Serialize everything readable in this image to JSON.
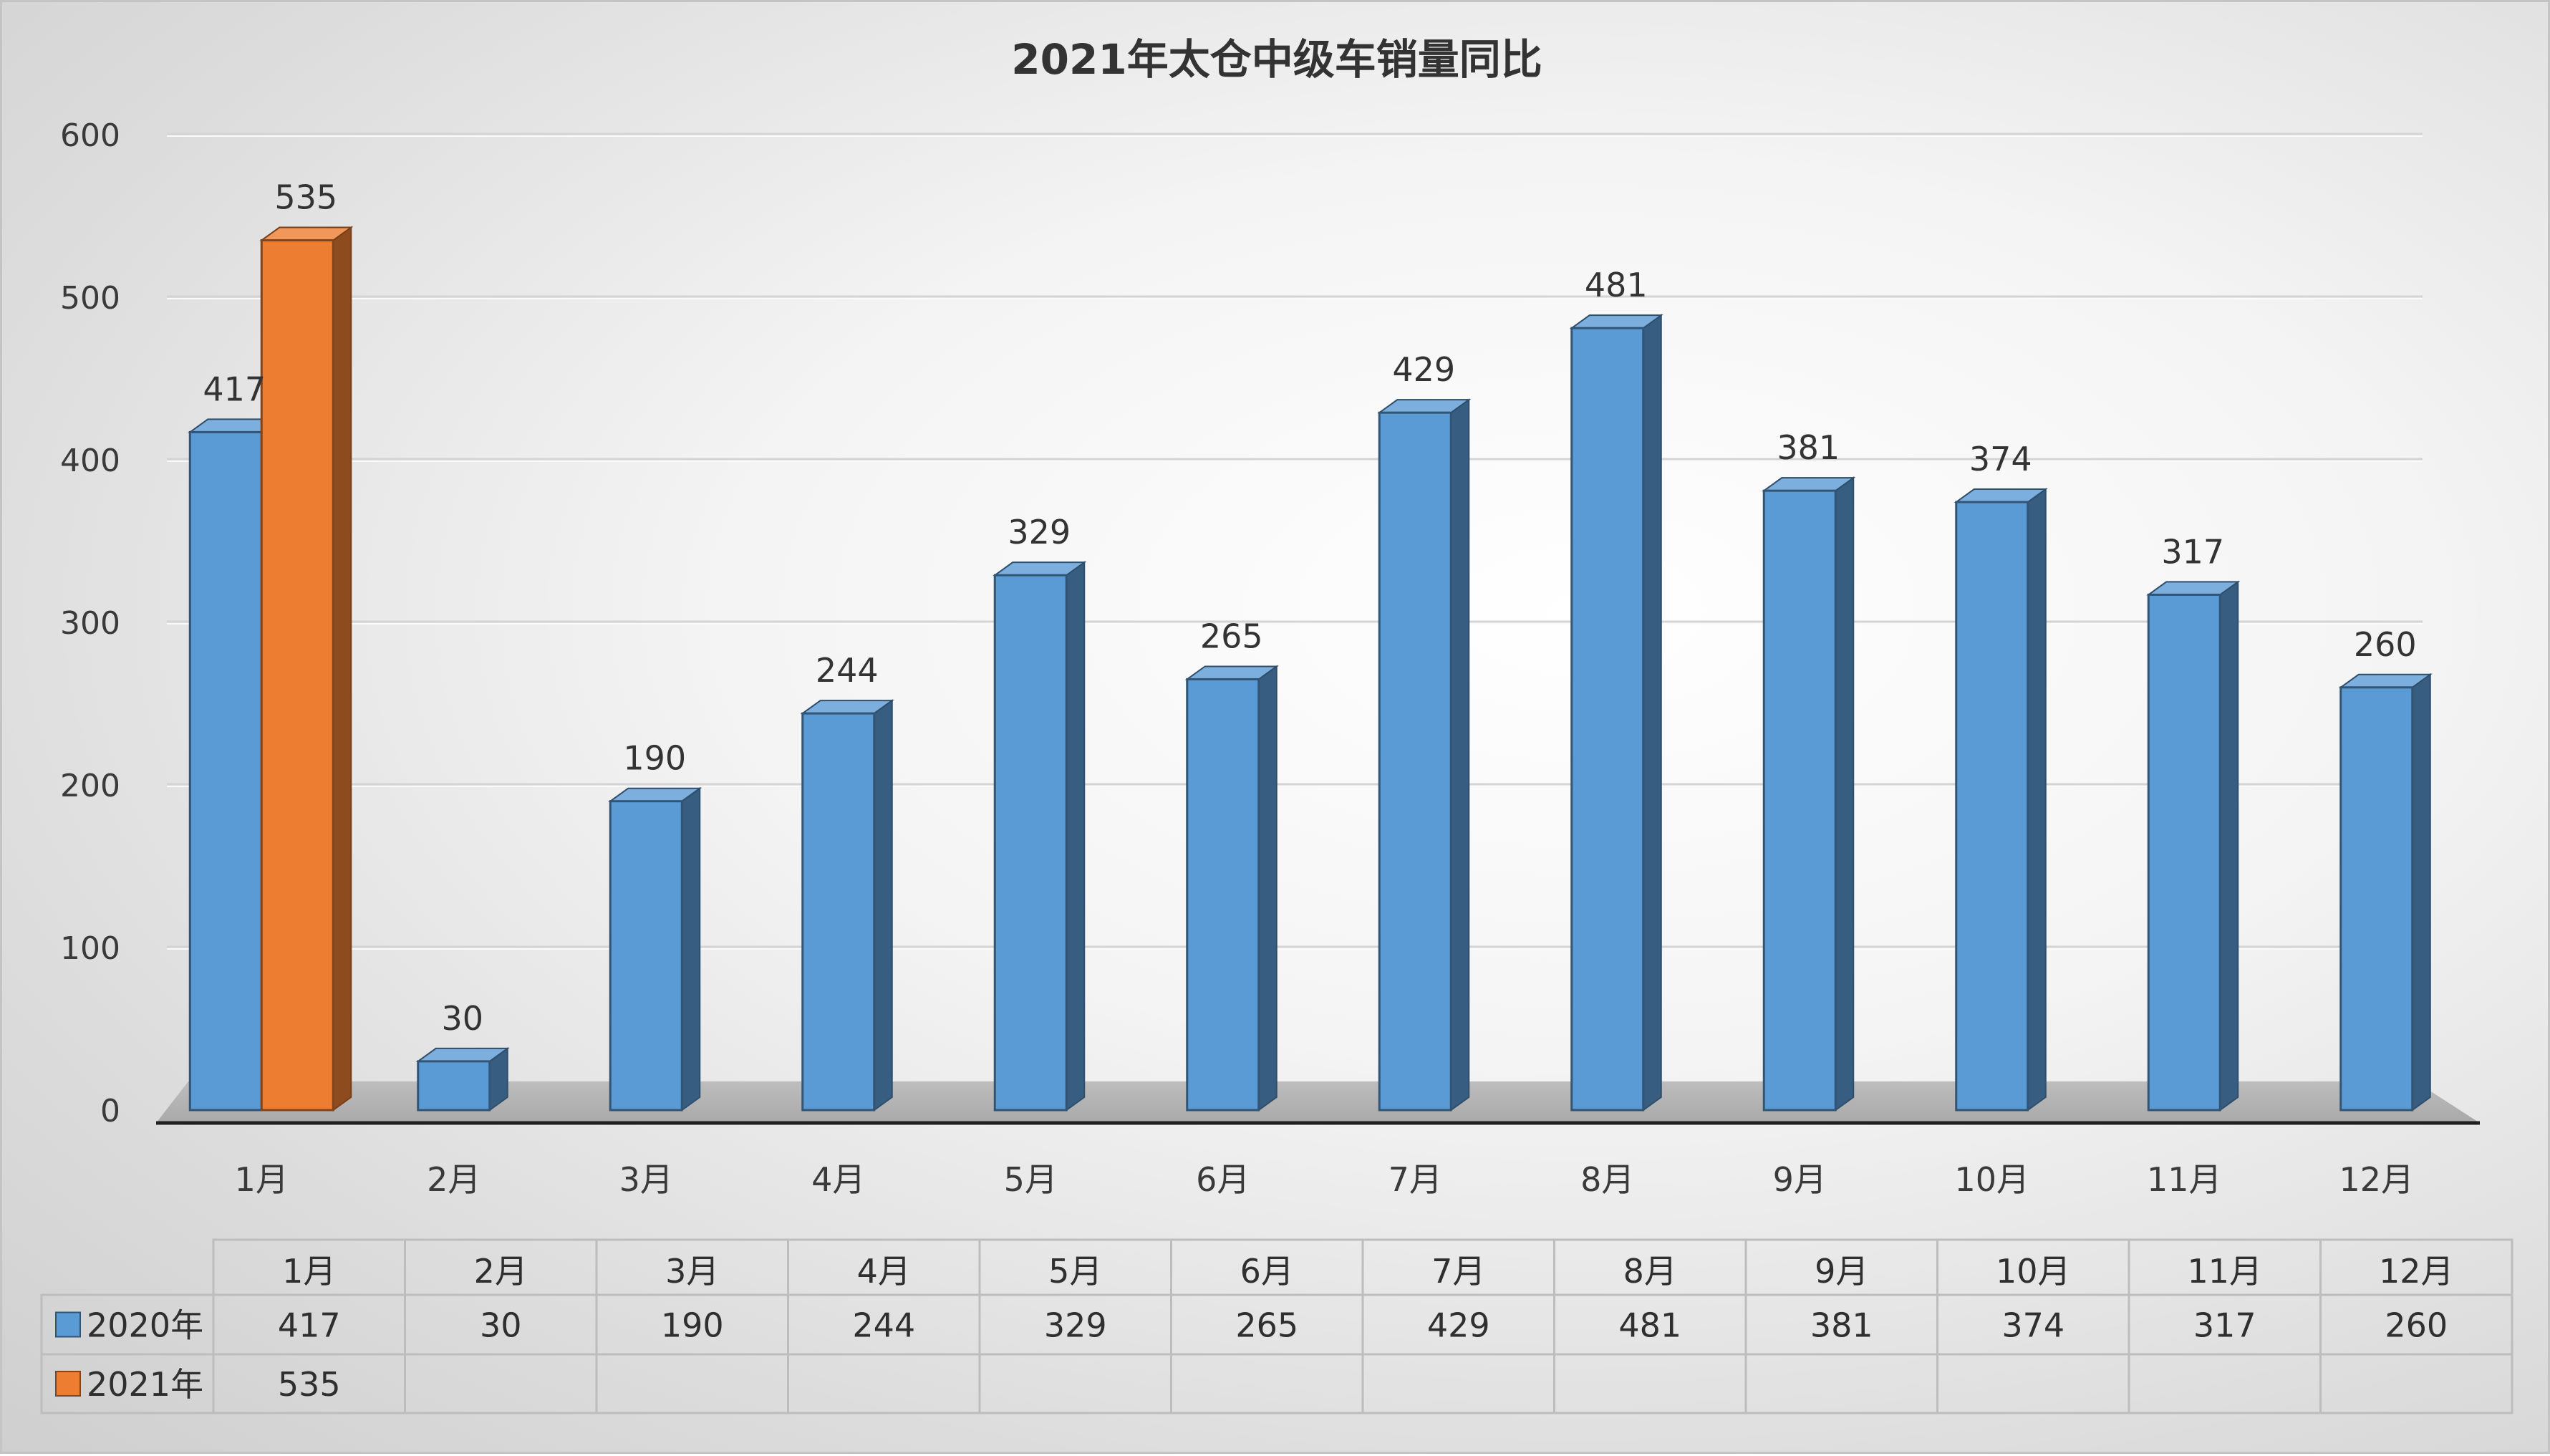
{
  "chart_data": {
    "type": "bar",
    "title": "2021年太仓中级车销量同比",
    "categories": [
      "1月",
      "2月",
      "3月",
      "4月",
      "5月",
      "6月",
      "7月",
      "8月",
      "9月",
      "10月",
      "11月",
      "12月"
    ],
    "series": [
      {
        "name": "2020年",
        "values": [
          417,
          30,
          190,
          244,
          329,
          265,
          429,
          481,
          381,
          374,
          317,
          260
        ],
        "color": "#5b9bd5"
      },
      {
        "name": "2021年",
        "values": [
          535,
          null,
          null,
          null,
          null,
          null,
          null,
          null,
          null,
          null,
          null,
          null
        ],
        "color": "#ed7d31"
      }
    ],
    "ylim": [
      0,
      600
    ],
    "yticks": [
      0,
      100,
      200,
      300,
      400,
      500,
      600
    ],
    "grid": true,
    "legend": "data-table-below",
    "data_table": true
  }
}
